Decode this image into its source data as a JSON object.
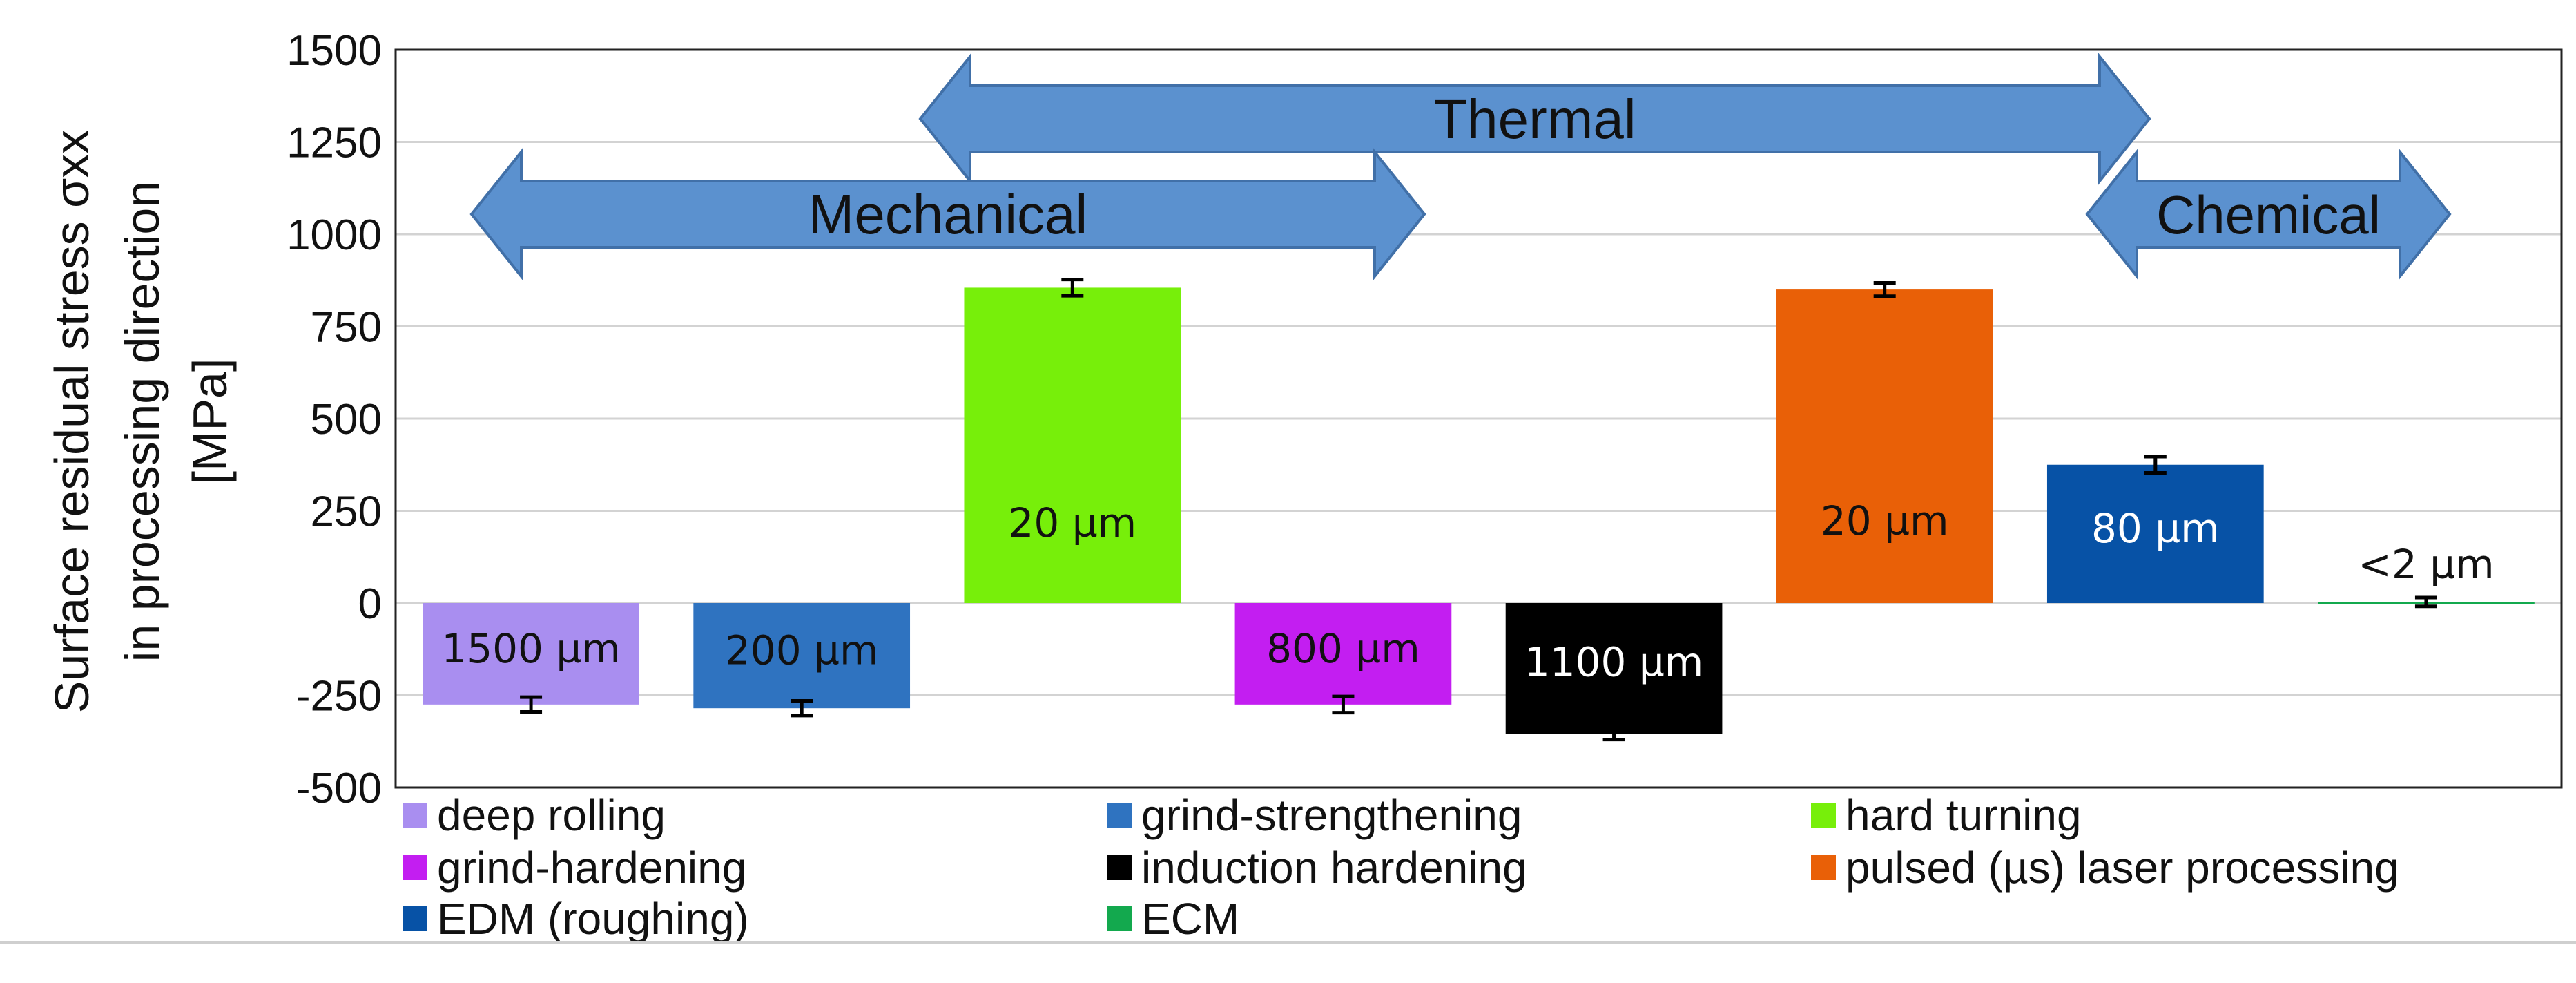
{
  "chart_data": {
    "type": "bar",
    "ylabel_lines": [
      "Surface residual stress σxx",
      "in processing direction",
      "[MPa]"
    ],
    "ylim": [
      -500,
      1500
    ],
    "yticks": [
      1500,
      1250,
      1000,
      750,
      500,
      250,
      0,
      -250,
      -500
    ],
    "grid": true,
    "bars": [
      {
        "name": "deep rolling",
        "value": -275,
        "error": 20,
        "label": "1500 µm",
        "color": "#a98ef0"
      },
      {
        "name": "grind-strengthening",
        "value": -285,
        "error": 20,
        "label": "200 µm",
        "color": "#2f73c0"
      },
      {
        "name": "hard turning",
        "value": 855,
        "error": 22,
        "label": "20 µm",
        "color": "#77ef0a"
      },
      {
        "name": "grind-hardening",
        "value": -275,
        "error": 22,
        "label": "800 µm",
        "color": "#c31ef1"
      },
      {
        "name": "induction hardening",
        "value": -355,
        "error": 15,
        "label": "1100 µm",
        "color": "#000000"
      },
      {
        "name": "pulsed (µs) laser processing",
        "value": 850,
        "error": 18,
        "label": "20 µm",
        "color": "#e96007"
      },
      {
        "name": "EDM (roughing)",
        "value": 375,
        "error": 22,
        "label": "80 µm",
        "color": "#0752a6"
      },
      {
        "name": "ECM",
        "value": 3,
        "error": 12,
        "label": "<2 µm",
        "color": "#13a94e"
      }
    ],
    "arrows": [
      {
        "label": "Thermal",
        "from_bar": 2,
        "to_bar": 6
      },
      {
        "label": "Mechanical",
        "from_bar": 0,
        "to_bar": 3
      },
      {
        "label": "Chemical",
        "from_bar": 7,
        "to_bar": 7
      }
    ],
    "legend_position": "bottom",
    "arrow_color": "#5b91cf",
    "arrow_stroke": "#4170a8"
  }
}
